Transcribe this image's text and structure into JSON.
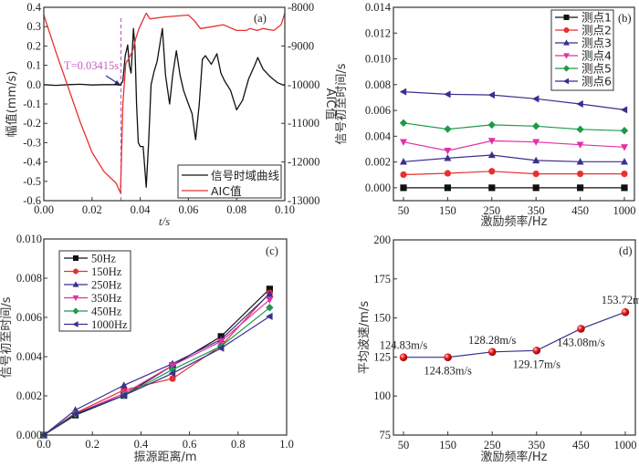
{
  "chart_data": [
    {
      "id": "a",
      "type": "line",
      "panel_label": "(a)",
      "xlabel": "t/s",
      "ylabel": "幅值(mm/s)",
      "y2label": "AIC值",
      "xlim": [
        0,
        0.1
      ],
      "ylim": [
        -0.6,
        0.4
      ],
      "y2lim": [
        -13000,
        -8000
      ],
      "xticks": [
        "0.00",
        "0.02",
        "0.04",
        "0.06",
        "0.08",
        "0.10"
      ],
      "yticks": [
        "-0.6",
        "-0.5",
        "-0.4",
        "-0.3",
        "-0.2",
        "-0.1",
        "0.0",
        "0.1",
        "0.2",
        "0.3",
        "0.4"
      ],
      "y2ticks": [
        "-13000",
        "-12000",
        "-11000",
        "-10000",
        "-9000",
        "-8000"
      ],
      "annotation": {
        "text": "T=0.03415s",
        "x": 0.032,
        "color": "#c060c0"
      },
      "legend": {
        "position": "bottom-right",
        "entries": [
          "信号时域曲线",
          "AIC值"
        ]
      },
      "series": [
        {
          "name": "信号时域曲线",
          "color": "#111111",
          "axis": "left",
          "x": [
            0,
            0.005,
            0.01,
            0.015,
            0.02,
            0.025,
            0.03,
            0.0318,
            0.0328,
            0.0338,
            0.0348,
            0.0355,
            0.0362,
            0.0372,
            0.0378,
            0.0385,
            0.0392,
            0.04,
            0.0412,
            0.0425,
            0.0435,
            0.0445,
            0.0458,
            0.047,
            0.0492,
            0.0505,
            0.0522,
            0.0535,
            0.055,
            0.0565,
            0.058,
            0.06,
            0.0615,
            0.063,
            0.0645,
            0.0658,
            0.067,
            0.0695,
            0.0718,
            0.0735,
            0.075,
            0.0775,
            0.08,
            0.0825,
            0.085,
            0.0875,
            0.0888,
            0.091,
            0.094,
            0.097,
            0.1
          ],
          "values": [
            0,
            -0.004,
            0,
            0.002,
            -0.002,
            0,
            0,
            -0.003,
            0.02,
            0.15,
            0.205,
            0.1,
            0.06,
            0.29,
            0.2,
            -0.1,
            -0.3,
            -0.32,
            -0.32,
            -0.53,
            -0.3,
            0.0,
            0.07,
            0.12,
            0.29,
            0.05,
            -0.1,
            0.05,
            0.175,
            0.05,
            -0.03,
            -0.1,
            -0.15,
            -0.285,
            -0.1,
            0.13,
            0.15,
            0.105,
            0.16,
            0.06,
            0.02,
            -0.03,
            -0.13,
            -0.08,
            0.03,
            0.1,
            0.14,
            0.08,
            0.04,
            0.01,
            -0.005
          ]
        },
        {
          "name": "AIC值",
          "color": "#e83030",
          "axis": "right",
          "x": [
            0,
            0.005,
            0.01,
            0.015,
            0.02,
            0.025,
            0.03,
            0.0318,
            0.0328,
            0.034,
            0.0355,
            0.037,
            0.0382,
            0.0395,
            0.041,
            0.0425,
            0.044,
            0.05,
            0.06,
            0.0625,
            0.065,
            0.07,
            0.0745,
            0.08,
            0.084,
            0.0855,
            0.0885,
            0.091,
            0.0955,
            0.0985,
            0.1
          ],
          "values": [
            -8200,
            -9150,
            -10050,
            -10950,
            -11750,
            -12250,
            -12550,
            -12800,
            -10500,
            -9450,
            -9300,
            -9100,
            -8800,
            -8550,
            -8350,
            -8150,
            -8300,
            -8250,
            -8200,
            -8350,
            -8550,
            -8500,
            -8450,
            -8600,
            -8600,
            -8550,
            -8600,
            -8550,
            -8600,
            -8450,
            -8150
          ]
        }
      ]
    },
    {
      "id": "b",
      "type": "line",
      "panel_label": "(b)",
      "xlabel": "激励频率/Hz",
      "ylabel": "信号初至时间/s",
      "categories": [
        "50",
        "150",
        "250",
        "350",
        "450",
        "1000"
      ],
      "ylim": [
        -0.001,
        0.014
      ],
      "yticks": [
        "0.000",
        "0.002",
        "0.004",
        "0.006",
        "0.008",
        "0.010",
        "0.012",
        "0.014"
      ],
      "legend": {
        "position": "top-right"
      },
      "series": [
        {
          "name": "测点1",
          "color": "#111111",
          "marker": "square",
          "values": [
            0,
            0,
            0,
            0,
            0,
            0
          ]
        },
        {
          "name": "测点2",
          "color": "#e83030",
          "marker": "circle",
          "values": [
            0.00102,
            0.00112,
            0.00128,
            0.00108,
            0.00108,
            0.00108
          ]
        },
        {
          "name": "测点3",
          "color": "#3a2f8f",
          "marker": "triangle-up",
          "values": [
            0.00202,
            0.0023,
            0.00254,
            0.00212,
            0.00202,
            0.00202
          ]
        },
        {
          "name": "测点4",
          "color": "#e030a8",
          "marker": "triangle-down",
          "values": [
            0.00355,
            0.00288,
            0.00364,
            0.00355,
            0.00334,
            0.00315
          ]
        },
        {
          "name": "测点5",
          "color": "#1e9a4a",
          "marker": "diamond",
          "values": [
            0.00503,
            0.00455,
            0.00488,
            0.00478,
            0.00453,
            0.00443
          ]
        },
        {
          "name": "测点6",
          "color": "#3a2f8f",
          "marker": "triangle-left",
          "values": [
            0.00745,
            0.00725,
            0.0072,
            0.0069,
            0.0065,
            0.00605
          ]
        }
      ]
    },
    {
      "id": "c",
      "type": "line",
      "panel_label": "(c)",
      "xlabel": "振源距离/m",
      "ylabel": "信号初至时间/s",
      "xlim": [
        0,
        1.0
      ],
      "ylim": [
        0,
        0.01
      ],
      "xticks": [
        "0.0",
        "0.2",
        "0.4",
        "0.6",
        "0.8",
        "1.0"
      ],
      "yticks": [
        "0.000",
        "0.002",
        "0.004",
        "0.006",
        "0.008",
        "0.010"
      ],
      "x": [
        0,
        0.13,
        0.33,
        0.53,
        0.73,
        0.93
      ],
      "legend": {
        "position": "top-left"
      },
      "series": [
        {
          "name": "50Hz",
          "color": "#111111",
          "marker": "square",
          "values": [
            0,
            0.00102,
            0.00202,
            0.00355,
            0.00503,
            0.00745
          ]
        },
        {
          "name": "150Hz",
          "color": "#e83030",
          "marker": "circle",
          "values": [
            0,
            0.00112,
            0.0023,
            0.00288,
            0.00455,
            0.00725
          ]
        },
        {
          "name": "250Hz",
          "color": "#3a2f8f",
          "marker": "triangle-up",
          "values": [
            0,
            0.00128,
            0.00254,
            0.00364,
            0.00488,
            0.0072
          ]
        },
        {
          "name": "350Hz",
          "color": "#e030a8",
          "marker": "triangle-down",
          "values": [
            0,
            0.00108,
            0.00212,
            0.00355,
            0.00478,
            0.0069
          ]
        },
        {
          "name": "450Hz",
          "color": "#1e9a4a",
          "marker": "diamond",
          "values": [
            0,
            0.00108,
            0.00202,
            0.00334,
            0.00453,
            0.0065
          ]
        },
        {
          "name": "1000Hz",
          "color": "#3a2f8f",
          "marker": "triangle-left",
          "values": [
            0,
            0.00108,
            0.00202,
            0.00315,
            0.00443,
            0.00605
          ]
        }
      ]
    },
    {
      "id": "d",
      "type": "line",
      "panel_label": "(d)",
      "xlabel": "激励频率/Hz",
      "ylabel": "平均波速/m/s",
      "categories": [
        "50",
        "150",
        "250",
        "350",
        "450",
        "1000"
      ],
      "ylim": [
        75,
        200
      ],
      "yticks": [
        "75",
        "100",
        "125",
        "150",
        "175",
        "200"
      ],
      "series": [
        {
          "name": "平均波速",
          "color": "#3a2f8f",
          "marker_color": "#e82020",
          "values": [
            124.83,
            124.83,
            128.28,
            129.17,
            143.08,
            153.72
          ]
        }
      ],
      "data_labels": [
        "124.83m/s",
        "124.83m/s",
        "128.28m/s",
        "129.17m/s",
        "143.08m/s",
        "153.72m/s"
      ]
    }
  ]
}
